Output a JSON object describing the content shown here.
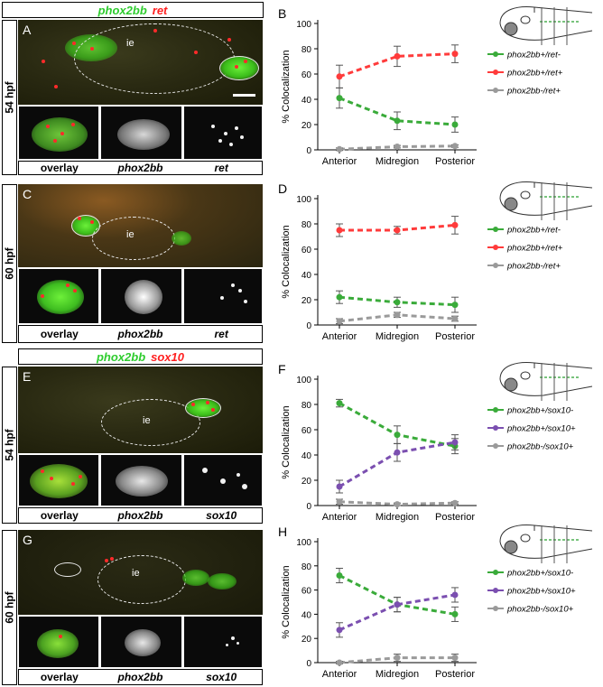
{
  "headers": {
    "top": {
      "gene1": "phox2bb",
      "gene2": "ret"
    },
    "bottom": {
      "gene1": "phox2bb",
      "gene2": "sox10"
    }
  },
  "panels": {
    "A": {
      "letter": "A",
      "stage": "54 hpf",
      "ie": "ie",
      "labels": [
        "overlay",
        "phox2bb",
        "ret"
      ]
    },
    "C": {
      "letter": "C",
      "stage": "60 hpf",
      "ie": "ie",
      "labels": [
        "overlay",
        "phox2bb",
        "ret"
      ]
    },
    "E": {
      "letter": "E",
      "stage": "54 hpf",
      "ie": "ie",
      "labels": [
        "overlay",
        "phox2bb",
        "sox10"
      ]
    },
    "G": {
      "letter": "G",
      "stage": "60 hpf",
      "ie": "ie",
      "labels": [
        "overlay",
        "phox2bb",
        "sox10"
      ]
    }
  },
  "colors": {
    "green": "#3aab3a",
    "red": "#ff3b3b",
    "purple": "#7b4fb0",
    "gray": "#9a9a9a",
    "header_green": "#2ecc2e",
    "header_red": "#ff2020"
  },
  "chart_data": [
    {
      "panel": "B",
      "type": "line",
      "categories": [
        "Anterior",
        "Midregion",
        "Posterior"
      ],
      "ylabel": "% Colocalization",
      "ylim": [
        0,
        100
      ],
      "yticks": [
        0,
        20,
        40,
        60,
        80,
        100
      ],
      "series": [
        {
          "name": "phox2bb+/ret-",
          "color": "#3aab3a",
          "values": [
            41,
            23,
            20
          ],
          "errors": [
            8,
            7,
            6
          ]
        },
        {
          "name": "phox2bb+/ret+",
          "color": "#ff3b3b",
          "values": [
            58,
            74,
            76
          ],
          "errors": [
            9,
            8,
            7
          ]
        },
        {
          "name": "phox2bb-/ret+",
          "color": "#9a9a9a",
          "values": [
            0.5,
            2.5,
            3
          ],
          "errors": [
            1,
            1,
            1
          ]
        }
      ]
    },
    {
      "panel": "D",
      "type": "line",
      "categories": [
        "Anterior",
        "Midregion",
        "Posterior"
      ],
      "ylabel": "% Colocalization",
      "ylim": [
        0,
        100
      ],
      "yticks": [
        0,
        20,
        40,
        60,
        80,
        100
      ],
      "series": [
        {
          "name": "phox2bb+/ret-",
          "color": "#3aab3a",
          "values": [
            22,
            18,
            16
          ],
          "errors": [
            5,
            4,
            6
          ]
        },
        {
          "name": "phox2bb+/ret+",
          "color": "#ff3b3b",
          "values": [
            75,
            75,
            79
          ],
          "errors": [
            5,
            3,
            7
          ]
        },
        {
          "name": "phox2bb-/ret+",
          "color": "#9a9a9a",
          "values": [
            3,
            8,
            5
          ],
          "errors": [
            2,
            2,
            2
          ]
        }
      ]
    },
    {
      "panel": "F",
      "type": "line",
      "categories": [
        "Anterior",
        "Midregion",
        "Posterior"
      ],
      "ylabel": "% Colocalization",
      "ylim": [
        0,
        100
      ],
      "yticks": [
        0,
        20,
        40,
        60,
        80,
        100
      ],
      "series": [
        {
          "name": "phox2bb+/sox10-",
          "color": "#3aab3a",
          "values": [
            81,
            56,
            47
          ],
          "errors": [
            3,
            7,
            6
          ]
        },
        {
          "name": "phox2bb+/sox10+",
          "color": "#7b4fb0",
          "values": [
            15,
            42,
            50
          ],
          "errors": [
            5,
            7,
            6
          ]
        },
        {
          "name": "phox2bb-/sox10+",
          "color": "#9a9a9a",
          "values": [
            3,
            1,
            2
          ],
          "errors": [
            2,
            1,
            1
          ]
        }
      ]
    },
    {
      "panel": "H",
      "type": "line",
      "categories": [
        "Anterior",
        "Midregion",
        "Posterior"
      ],
      "ylabel": "% Colocalization",
      "ylim": [
        0,
        100
      ],
      "yticks": [
        0,
        20,
        40,
        60,
        80,
        100
      ],
      "series": [
        {
          "name": "phox2bb+/sox10-",
          "color": "#3aab3a",
          "values": [
            72,
            48,
            40
          ],
          "errors": [
            6,
            6,
            6
          ]
        },
        {
          "name": "phox2bb+/sox10+",
          "color": "#7b4fb0",
          "values": [
            27,
            48,
            56
          ],
          "errors": [
            6,
            6,
            6
          ]
        },
        {
          "name": "phox2bb-/sox10+",
          "color": "#9a9a9a",
          "values": [
            0,
            4,
            4
          ],
          "errors": [
            1,
            3,
            3
          ]
        }
      ]
    }
  ]
}
